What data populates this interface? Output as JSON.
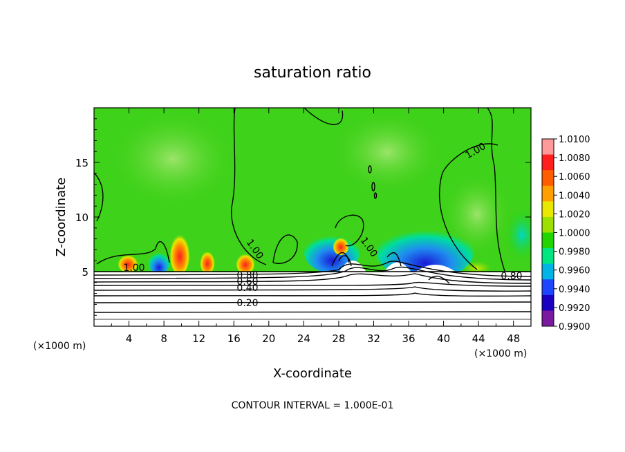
{
  "chart_data": {
    "type": "heatmap",
    "title": "saturation ratio",
    "xlabel": "X-coordinate",
    "ylabel": "Z-coordinate",
    "x_unit": "(×1000 m)",
    "y_unit": "(×1000 m)",
    "xlim": [
      0,
      50
    ],
    "ylim": [
      0,
      20
    ],
    "x_ticks": [
      "4",
      "8",
      "12",
      "16",
      "20",
      "24",
      "28",
      "32",
      "36",
      "40",
      "44",
      "48"
    ],
    "y_ticks": [
      "5",
      "10",
      "15"
    ],
    "colorbar": {
      "levels": [
        "1.0100",
        "1.0080",
        "1.0060",
        "1.0040",
        "1.0020",
        "1.0000",
        "0.9980",
        "0.9960",
        "0.9940",
        "0.9920",
        "0.9900"
      ],
      "colors": [
        "#ff9a9a",
        "#ff1f1f",
        "#ff5e00",
        "#ffa000",
        "#e8e800",
        "#9de000",
        "#22d400",
        "#00e680",
        "#00b4e6",
        "#1f46ff",
        "#1a00c0",
        "#7a1aa0"
      ]
    },
    "contour_labels": [
      "1.00",
      "1.00",
      "1.00",
      "1.00",
      "0.80",
      "0.80",
      "0.60",
      "0.40",
      "0.20"
    ],
    "contour_interval": "CONTOUR INTERVAL = 1.000E-01"
  }
}
